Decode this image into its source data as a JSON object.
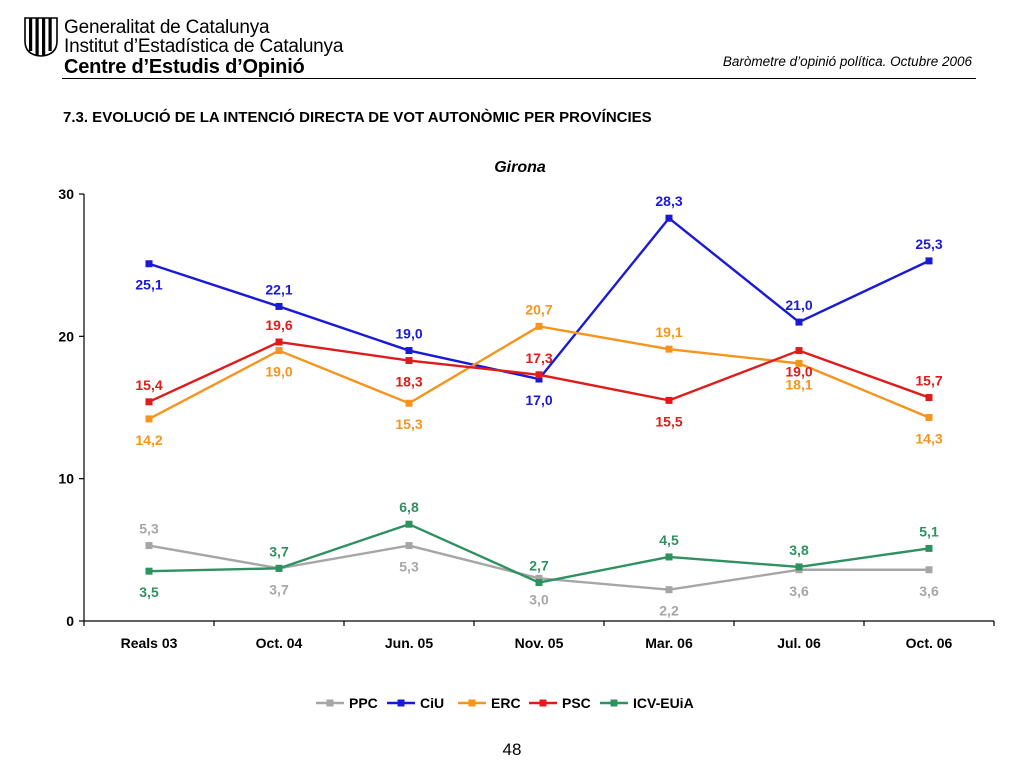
{
  "header": {
    "org_line1": "Generalitat de Catalunya",
    "org_line2": "Institut d’Estadística de Catalunya",
    "org_line3": "Centre d’Estudis d’Opinió",
    "report": "Baròmetre d’opinió política. Octubre 2006",
    "logo_icon": "generalitat-coat-of-arms-icon"
  },
  "section_title": "7.3. EVOLUCIÓ DE LA INTENCIÓ DIRECTA DE VOT AUTONÒMIC PER PROVÍNCIES",
  "page_number": "48",
  "chart_data": {
    "type": "line",
    "title": "Girona",
    "categories": [
      "Reals 03",
      "Oct. 04",
      "Jun. 05",
      "Nov. 05",
      "Mar. 06",
      "Jul. 06",
      "Oct. 06"
    ],
    "ylim": [
      0,
      30
    ],
    "yticks": [
      0,
      10,
      20,
      30
    ],
    "grid": false,
    "legend_position": "bottom",
    "series": [
      {
        "name": "PPC",
        "color": "#A6A6A6",
        "values": [
          5.3,
          3.7,
          5.3,
          3.0,
          2.2,
          3.6,
          3.6
        ],
        "labels": [
          "5,3",
          "3,7",
          "5,3",
          "3,0",
          "2,2",
          "3,6",
          "3,6"
        ]
      },
      {
        "name": "CiU",
        "color": "#1A1AD6",
        "values": [
          25.1,
          22.1,
          19.0,
          17.0,
          28.3,
          21.0,
          25.3
        ],
        "labels": [
          "25,1",
          "22,1",
          "19,0",
          "17,0",
          "28,3",
          "21,0",
          "25,3"
        ]
      },
      {
        "name": "ERC",
        "color": "#F7941D",
        "values": [
          14.2,
          19.0,
          15.3,
          20.7,
          19.1,
          18.1,
          14.3
        ],
        "labels": [
          "14,2",
          "19,0",
          "15,3",
          "20,7",
          "19,1",
          "18,1",
          "14,3"
        ]
      },
      {
        "name": "PSC",
        "color": "#E01B1B",
        "values": [
          15.4,
          19.6,
          18.3,
          17.3,
          15.5,
          19.0,
          15.7
        ],
        "labels": [
          "15,4",
          "19,6",
          "18,3",
          "17,3",
          "15,5",
          "19,0",
          "15,7"
        ]
      },
      {
        "name": "ICV-EUiA",
        "color": "#2E9160",
        "values": [
          3.5,
          3.7,
          6.8,
          2.7,
          4.5,
          3.8,
          5.1
        ],
        "labels": [
          "3,5",
          "3,7",
          "6,8",
          "2,7",
          "4,5",
          "3,8",
          "5,1"
        ]
      }
    ]
  }
}
